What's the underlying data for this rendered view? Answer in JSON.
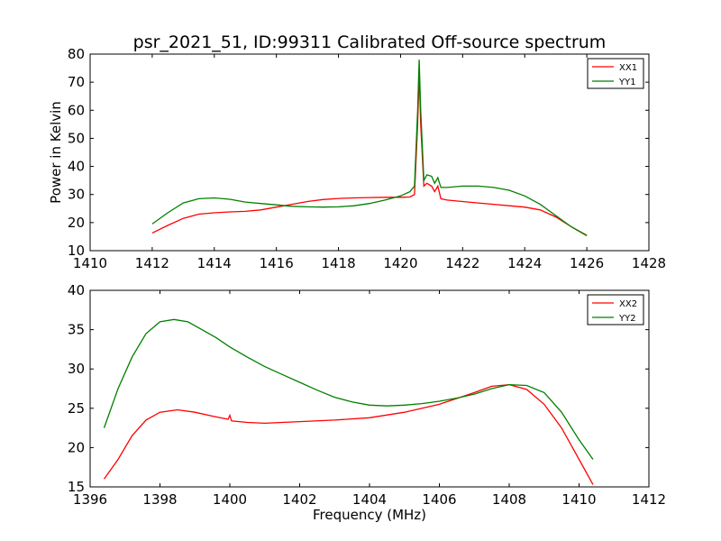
{
  "title": "psr_2021_51, ID:99311 Calibrated Off-source spectrum",
  "chart_data": [
    {
      "type": "line",
      "title": "psr_2021_51, ID:99311 Calibrated Off-source spectrum",
      "xlabel": "",
      "ylabel": "Power in Kelvin",
      "xlim": [
        1410,
        1428
      ],
      "ylim": [
        10,
        80
      ],
      "xticks": [
        1410,
        1412,
        1414,
        1416,
        1418,
        1420,
        1422,
        1424,
        1426,
        1428
      ],
      "yticks": [
        10,
        20,
        30,
        40,
        50,
        60,
        70,
        80
      ],
      "grid": false,
      "legend_position": "top-right",
      "series": [
        {
          "name": "XX1",
          "color": "#ff0000",
          "x": [
            1412.0,
            1412.5,
            1413.0,
            1413.5,
            1414.0,
            1414.5,
            1415.0,
            1415.5,
            1416.0,
            1416.5,
            1417.0,
            1417.5,
            1418.0,
            1418.5,
            1419.0,
            1419.5,
            1420.0,
            1420.3,
            1420.45,
            1420.55,
            1420.6,
            1420.65,
            1420.75,
            1420.85,
            1421.0,
            1421.1,
            1421.2,
            1421.3,
            1421.5,
            1422.0,
            1422.5,
            1423.0,
            1423.5,
            1424.0,
            1424.5,
            1425.0,
            1425.5,
            1426.0
          ],
          "y": [
            16.3,
            19.0,
            21.5,
            23.0,
            23.5,
            23.8,
            24.0,
            24.5,
            25.5,
            26.5,
            27.5,
            28.2,
            28.6,
            28.8,
            28.9,
            29.0,
            29.0,
            29.1,
            30.0,
            55.0,
            73.0,
            55.0,
            33.0,
            34.0,
            33.0,
            31.0,
            33.0,
            28.5,
            28.0,
            27.5,
            27.0,
            26.5,
            26.0,
            25.5,
            24.5,
            22.0,
            18.5,
            15.3
          ]
        },
        {
          "name": "YY1",
          "color": "#008000",
          "x": [
            1412.0,
            1412.5,
            1413.0,
            1413.5,
            1414.0,
            1414.5,
            1415.0,
            1415.5,
            1416.0,
            1416.5,
            1417.0,
            1417.5,
            1418.0,
            1418.5,
            1419.0,
            1419.5,
            1420.0,
            1420.3,
            1420.45,
            1420.55,
            1420.6,
            1420.65,
            1420.75,
            1420.85,
            1421.0,
            1421.1,
            1421.2,
            1421.3,
            1421.5,
            1422.0,
            1422.5,
            1423.0,
            1423.5,
            1424.0,
            1424.5,
            1425.0,
            1425.5,
            1426.0
          ],
          "y": [
            19.5,
            23.5,
            27.0,
            28.5,
            28.8,
            28.3,
            27.3,
            26.8,
            26.3,
            25.8,
            25.6,
            25.5,
            25.6,
            26.0,
            26.8,
            28.0,
            29.5,
            31.0,
            33.0,
            60.0,
            78.0,
            60.0,
            35.0,
            37.0,
            36.5,
            34.0,
            36.0,
            32.5,
            32.5,
            33.0,
            33.0,
            32.5,
            31.5,
            29.5,
            26.5,
            22.5,
            18.5,
            15.5
          ]
        }
      ]
    },
    {
      "type": "line",
      "title": "",
      "xlabel": "Frequency (MHz)",
      "ylabel": "",
      "xlim": [
        1396,
        1412
      ],
      "ylim": [
        15,
        40
      ],
      "xticks": [
        1396,
        1398,
        1400,
        1402,
        1404,
        1406,
        1408,
        1410,
        1412
      ],
      "yticks": [
        15,
        20,
        25,
        30,
        35,
        40
      ],
      "grid": false,
      "legend_position": "top-right",
      "series": [
        {
          "name": "XX2",
          "color": "#ff0000",
          "x": [
            1396.4,
            1396.8,
            1397.2,
            1397.6,
            1398.0,
            1398.5,
            1399.0,
            1399.5,
            1399.95,
            1400.0,
            1400.05,
            1400.5,
            1401.0,
            1402.0,
            1403.0,
            1404.0,
            1405.0,
            1406.0,
            1407.0,
            1407.5,
            1408.0,
            1408.5,
            1409.0,
            1409.5,
            1410.0,
            1410.4
          ],
          "y": [
            16.0,
            18.5,
            21.5,
            23.5,
            24.5,
            24.8,
            24.5,
            24.0,
            23.6,
            24.1,
            23.4,
            23.2,
            23.1,
            23.3,
            23.5,
            23.8,
            24.5,
            25.5,
            27.0,
            27.8,
            28.0,
            27.4,
            25.5,
            22.5,
            18.5,
            15.3
          ]
        },
        {
          "name": "YY2",
          "color": "#008000",
          "x": [
            1396.4,
            1396.8,
            1397.2,
            1397.6,
            1398.0,
            1398.4,
            1398.8,
            1399.2,
            1399.6,
            1400.0,
            1400.5,
            1401.0,
            1401.5,
            1402.0,
            1402.5,
            1403.0,
            1403.5,
            1404.0,
            1404.5,
            1405.0,
            1405.5,
            1406.0,
            1406.5,
            1407.0,
            1407.5,
            1408.0,
            1408.5,
            1409.0,
            1409.5,
            1410.0,
            1410.4
          ],
          "y": [
            22.5,
            27.5,
            31.5,
            34.5,
            36.0,
            36.3,
            36.0,
            35.0,
            34.0,
            32.8,
            31.5,
            30.3,
            29.3,
            28.3,
            27.3,
            26.4,
            25.8,
            25.4,
            25.3,
            25.4,
            25.6,
            25.9,
            26.3,
            26.8,
            27.5,
            28.0,
            27.9,
            27.0,
            24.5,
            21.0,
            18.5
          ]
        }
      ]
    }
  ]
}
